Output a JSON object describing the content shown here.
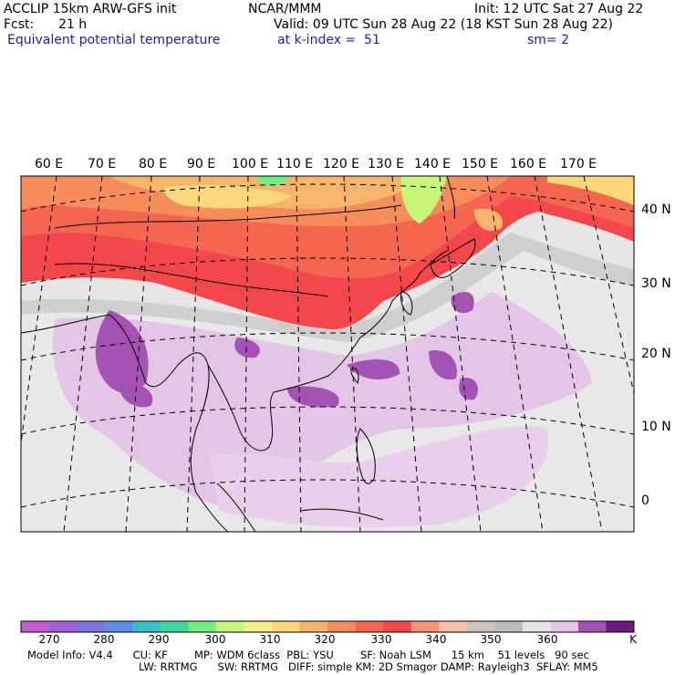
{
  "header": {
    "model": "ACCLIP 15km ARW-GFS init",
    "org": "NCAR/MMM",
    "init": "Init: 12 UTC Sat 27 Aug 22",
    "fcst_label": "Fcst:",
    "fcst_value": "21 h",
    "valid": "Valid: 09 UTC Sun 28 Aug 22 (18 KST Sun 28 Aug 22)",
    "field": "Equivalent potential temperature",
    "level": "at k-index =  51",
    "smoothing": "sm= 2"
  },
  "map": {
    "lon_labels": [
      "60 E",
      "70 E",
      "80 E",
      "90 E",
      "100 E",
      "110 E",
      "120 E",
      "130 E",
      "140 E",
      "150 E",
      "160 E",
      "170 E"
    ],
    "lat_labels": [
      "40 N",
      "30 N",
      "20 N",
      "10 N",
      "0"
    ]
  },
  "colorbar": {
    "unit": "K",
    "tick_labels": [
      "270",
      "280",
      "290",
      "300",
      "310",
      "320",
      "330",
      "340",
      "350",
      "360"
    ],
    "colors": [
      "#c25ccf",
      "#a25fd9",
      "#7f74e0",
      "#5b8ee8",
      "#39bfc4",
      "#3fd9a0",
      "#73ee80",
      "#c6f57a",
      "#f3f189",
      "#f9d77a",
      "#f6b56a",
      "#f58e5c",
      "#f56650",
      "#f4474b",
      "#f7937a",
      "#f6c3aa",
      "#cfc5bd",
      "#bdbdbd",
      "#e6e6e6",
      "#e3c6e6",
      "#a552b5",
      "#6a1a7a"
    ]
  },
  "model_info": {
    "line1": "Model Info: V4.4      CU: KF        MP: WDM 6class  PBL: YSU        SF: Noah LSM      15 km    51 levels   90 sec",
    "line2": "LW: RRTMG      SW: RRTMG   DIFF: simple KM: 2D Smagor DAMP: Rayleigh3  SFLAY: MM5"
  }
}
